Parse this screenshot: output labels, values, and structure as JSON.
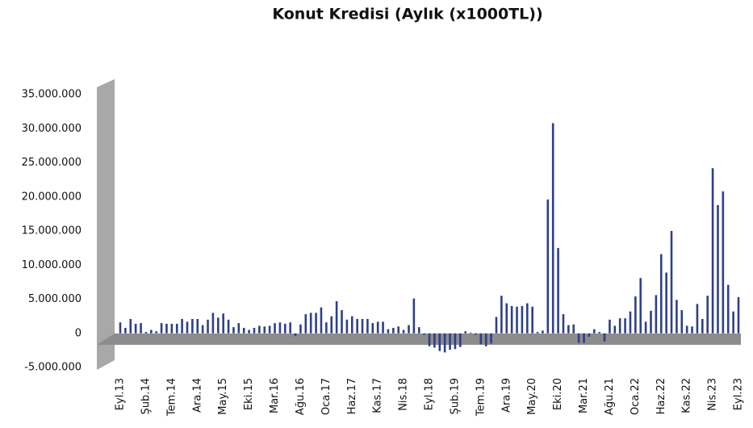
{
  "chart_data": {
    "type": "bar",
    "title": "Konut Kredisi (Aylık (x1000TL))",
    "categories": [
      "Eyl.13",
      null,
      null,
      null,
      null,
      "Şub.14",
      null,
      null,
      null,
      null,
      "Tem.14",
      null,
      null,
      null,
      null,
      "Ara.14",
      null,
      null,
      null,
      null,
      "May.15",
      null,
      null,
      null,
      null,
      "Eki.15",
      null,
      null,
      null,
      null,
      "Mar.16",
      null,
      null,
      null,
      null,
      "Ağu.16",
      null,
      null,
      null,
      null,
      "Oca.17",
      null,
      null,
      null,
      null,
      "Haz.17",
      null,
      null,
      null,
      null,
      "Kas.17",
      null,
      null,
      null,
      null,
      "Nis.18",
      null,
      null,
      null,
      null,
      "Eyl.18",
      null,
      null,
      null,
      null,
      "Şub.19",
      null,
      null,
      null,
      null,
      "Tem.19",
      null,
      null,
      null,
      null,
      "Ara.19",
      null,
      null,
      null,
      null,
      "May.20",
      null,
      null,
      null,
      null,
      "Eki.20",
      null,
      null,
      null,
      null,
      "Mar.21",
      null,
      null,
      null,
      null,
      "Ağu.21",
      null,
      null,
      null,
      null,
      "Oca.22",
      null,
      null,
      null,
      null,
      "Haz.22",
      null,
      null,
      null,
      null,
      "Kas.22",
      null,
      null,
      null,
      null,
      "Nis.23",
      null,
      null,
      null,
      null,
      "Eyl.23"
    ],
    "values": [
      1600000,
      800000,
      2100000,
      1400000,
      1500000,
      200000,
      500000,
      300000,
      1500000,
      1400000,
      1400000,
      1400000,
      2100000,
      1700000,
      2100000,
      2100000,
      1200000,
      2000000,
      3000000,
      2300000,
      2900000,
      2000000,
      900000,
      1500000,
      800000,
      500000,
      800000,
      1100000,
      1000000,
      1100000,
      1500000,
      1600000,
      1400000,
      1600000,
      -400000,
      1300000,
      2800000,
      3000000,
      3000000,
      3800000,
      1600000,
      2500000,
      4700000,
      3400000,
      2000000,
      2500000,
      2100000,
      2100000,
      2100000,
      1500000,
      1700000,
      1700000,
      600000,
      800000,
      1000000,
      500000,
      1200000,
      5100000,
      900000,
      -200000,
      -1900000,
      -2100000,
      -2600000,
      -2800000,
      -2400000,
      -2300000,
      -2000000,
      300000,
      100000,
      -200000,
      -1600000,
      -1900000,
      -1500000,
      2400000,
      5500000,
      4400000,
      4000000,
      3900000,
      4000000,
      4400000,
      3900000,
      200000,
      400000,
      19600000,
      30800000,
      12500000,
      2800000,
      1200000,
      1300000,
      -1400000,
      -1400000,
      -500000,
      600000,
      200000,
      -1200000,
      2000000,
      1100000,
      2200000,
      2200000,
      3200000,
      5400000,
      8100000,
      1700000,
      3300000,
      5600000,
      11600000,
      8900000,
      15000000,
      4900000,
      3400000,
      1100000,
      1000000,
      4300000,
      2100000,
      5500000,
      24200000,
      18800000,
      20800000,
      7100000,
      3200000,
      5300000
    ],
    "color": "#2e3f8a",
    "ylim": [
      -5000000,
      35000000
    ],
    "yticks": [
      {
        "value": -5000000,
        "label": "-5.000.000"
      },
      0,
      {
        "value": 5000000,
        "label": "5.000.000"
      },
      {
        "value": 10000000,
        "label": "10.000.000"
      },
      {
        "value": 15000000,
        "label": "15.000.000"
      },
      {
        "value": 20000000,
        "label": "20.000.000"
      },
      {
        "value": 25000000,
        "label": "25.000.000"
      },
      {
        "value": 30000000,
        "label": "30.000.000"
      },
      {
        "value": 35000000,
        "label": "35.000.000"
      }
    ]
  }
}
